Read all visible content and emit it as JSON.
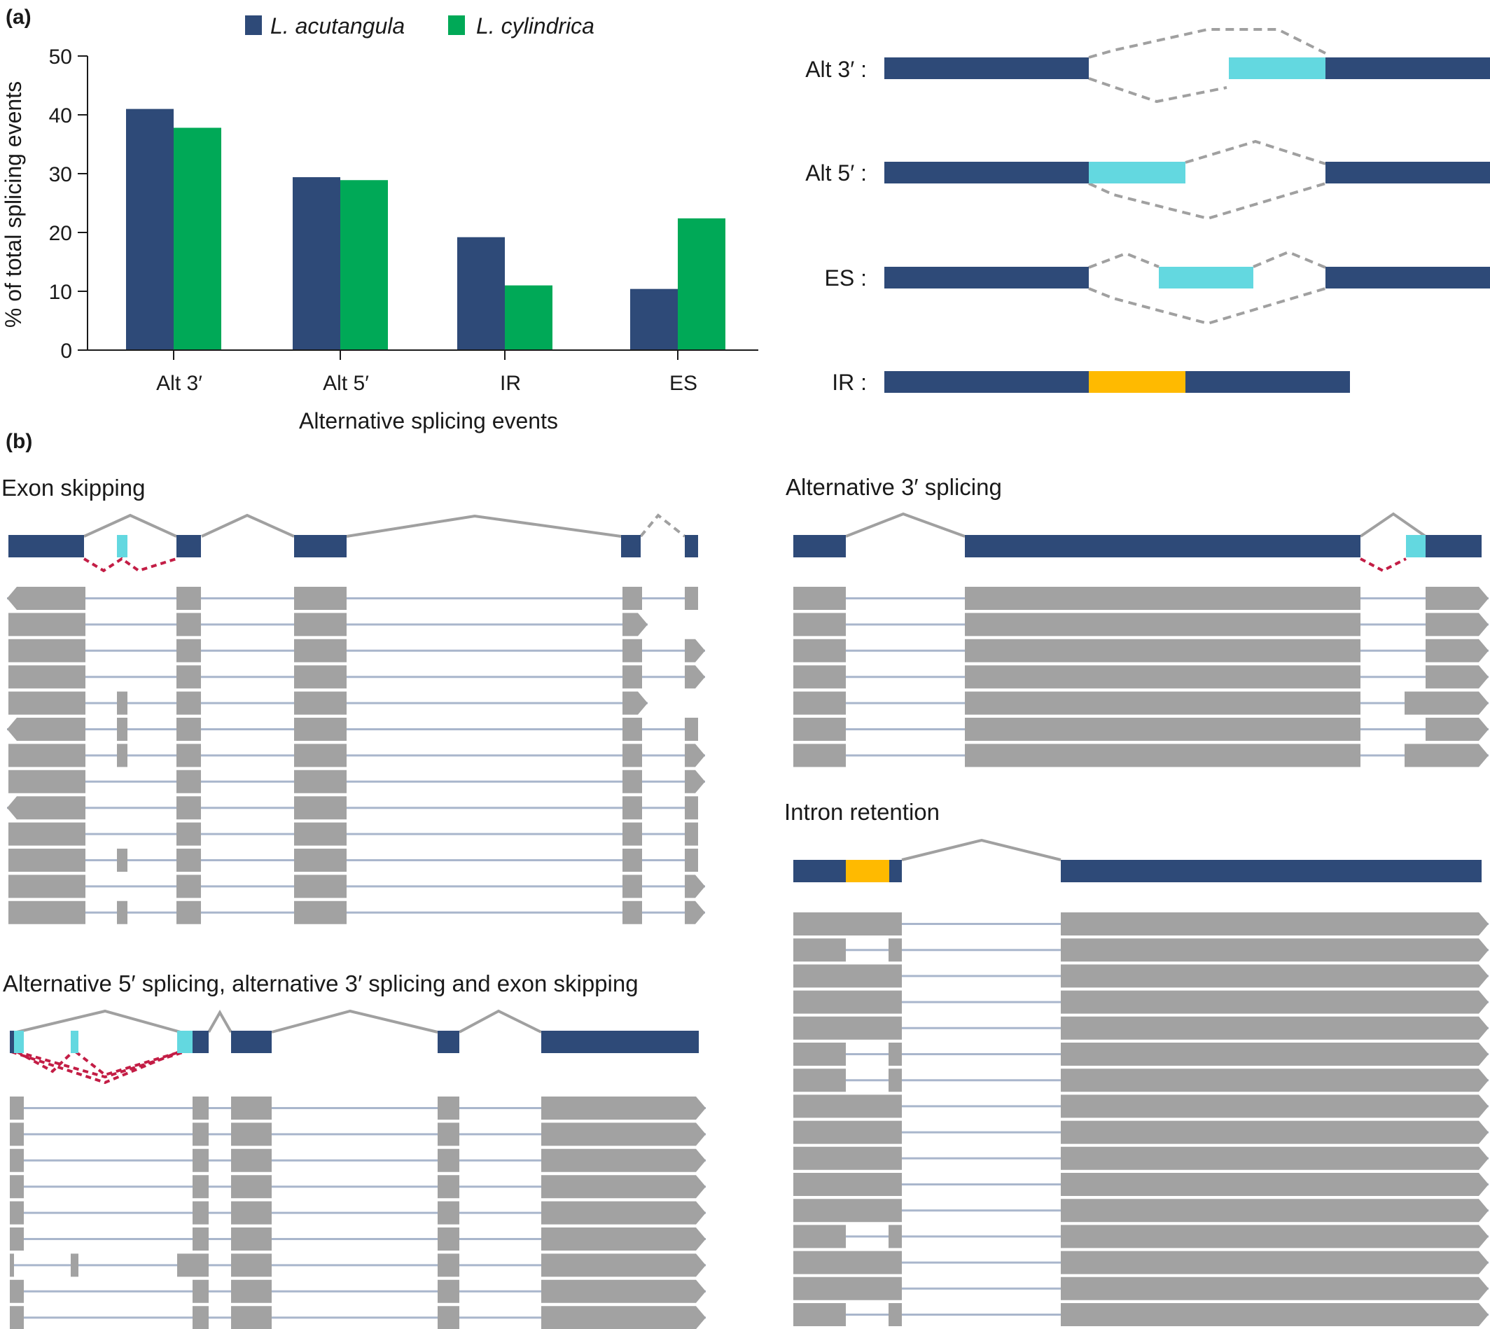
{
  "panel_labels": {
    "a": "(a)",
    "b": "(b)"
  },
  "colors": {
    "exon": "#2e4a78",
    "alt": "#63d8e0",
    "retained": "#ffba00",
    "acutangula": "#2e4a78",
    "cylindrica": "#00a957",
    "transcript": "#a2a2a2",
    "intron_line": "#a9b6cc",
    "junction": "#a0a0a0",
    "alt_junction": "#c31d45"
  },
  "chart_data": {
    "type": "bar",
    "categories": [
      "Alt 3′",
      "Alt 5′",
      "IR",
      "ES"
    ],
    "series": [
      {
        "name": "L. acutangula",
        "values": [
          41.0,
          29.4,
          19.2,
          10.4
        ]
      },
      {
        "name": "L. cylindrica",
        "values": [
          37.8,
          28.9,
          11.0,
          22.4
        ]
      }
    ],
    "title": "",
    "xlabel": "Alternative splicing events",
    "ylabel": "% of total splicing events",
    "ylim": [
      0,
      50
    ],
    "yticks": [
      "0",
      "10",
      "20",
      "30",
      "40",
      "50"
    ],
    "legend": "top",
    "grid": false
  },
  "event_diagrams": {
    "labels": [
      "Alt 3′ :",
      "Alt 5′ :",
      "ES :",
      "IR :"
    ]
  },
  "gene_models": {
    "exon_skipping": {
      "title": "Exon skipping"
    },
    "alt3": {
      "title": "Alternative 3′ splicing"
    },
    "intron_retention": {
      "title": "Intron retention"
    },
    "combined": {
      "title": "Alternative 5′ splicing, alternative 3′ splicing and exon skipping"
    }
  }
}
